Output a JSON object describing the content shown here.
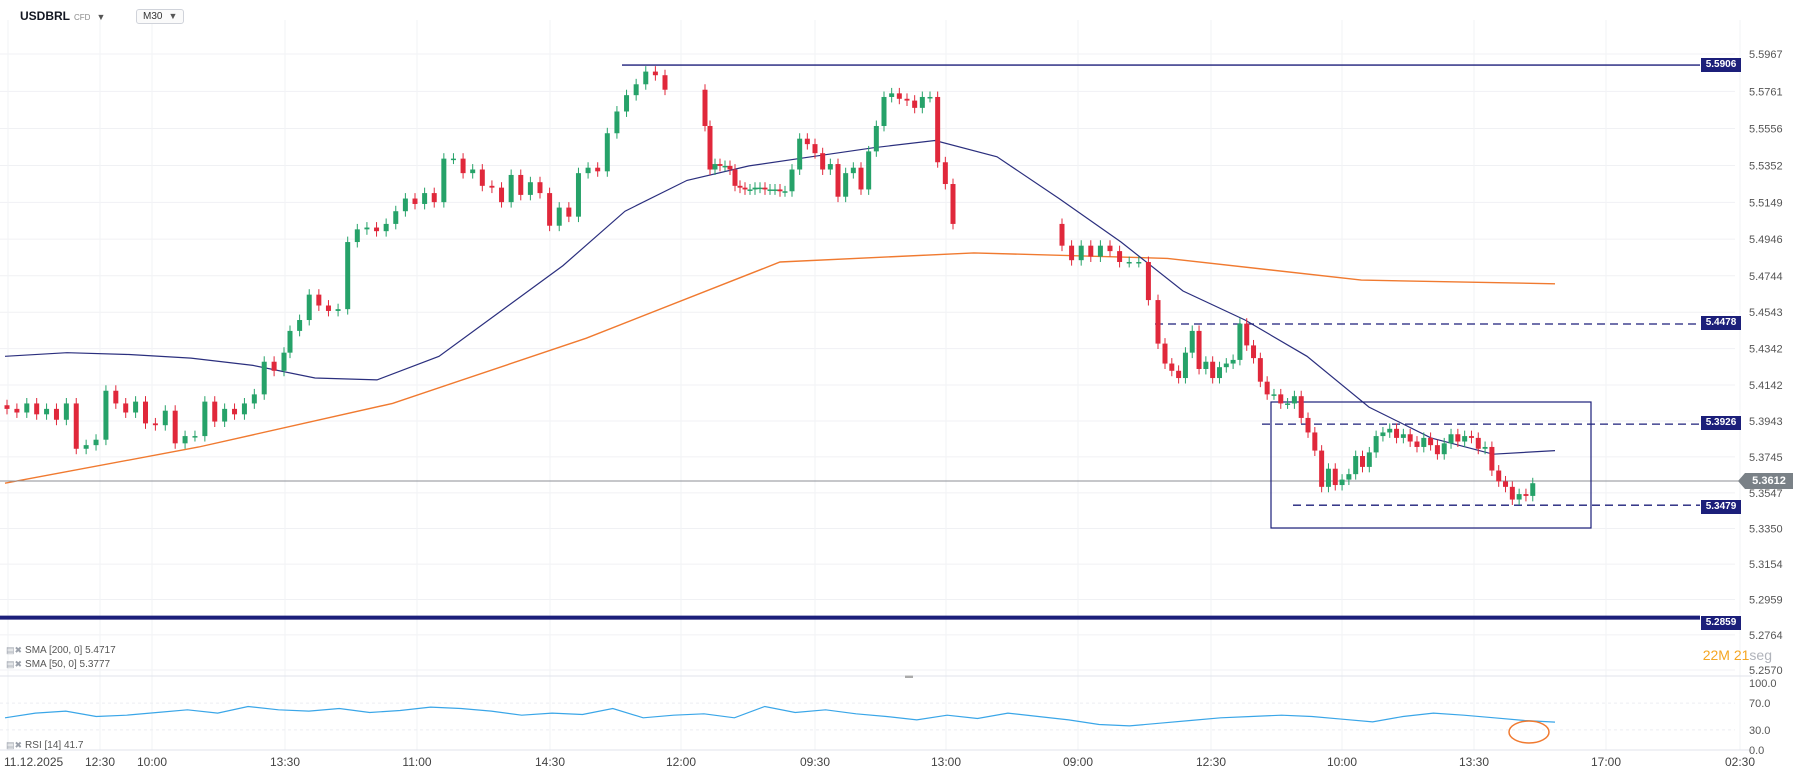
{
  "header": {
    "symbol": "USDBRL",
    "symbol_tag": "CFD",
    "timeframe": "M30"
  },
  "indicators": {
    "sma200_label": "SMA [200, 0] 5.4717",
    "sma50_label": "SMA [50, 0] 5.3777",
    "rsi_label": "RSI [14] 41.7"
  },
  "countdown": {
    "min": "22",
    "min_unit": "M",
    "sec": "21",
    "sec_unit": "seg"
  },
  "colors": {
    "up": "#26a269",
    "down": "#e0283b",
    "sma50": "#2b2f7e",
    "sma200": "#f07a30",
    "rsi": "#3aa6e8",
    "level": "#1c1f7a"
  },
  "chart_data": {
    "type": "candlestick",
    "symbol": "USDBRL",
    "timeframe": "M30",
    "y_ticks": [
      "5.5967",
      "5.5761",
      "5.5556",
      "5.5352",
      "5.5149",
      "5.4946",
      "5.4744",
      "5.4543",
      "5.4342",
      "5.4142",
      "5.3943",
      "5.3745",
      "5.3547",
      "5.3350",
      "5.3154",
      "5.2959",
      "5.2764",
      "5.2570"
    ],
    "ylim": [
      5.257,
      5.5967
    ],
    "x_ticks": [
      "11.12.2025",
      "12:30",
      "10:00",
      "13:30",
      "11:00",
      "14:30",
      "12:00",
      "09:30",
      "13:00",
      "09:00",
      "12:30",
      "10:00",
      "13:30",
      "17:00",
      "02:30"
    ],
    "current_price": "5.3612",
    "levels": [
      {
        "price": "5.5906",
        "style": "solid"
      },
      {
        "price": "5.4478",
        "style": "dashed"
      },
      {
        "price": "5.3926",
        "style": "dashed"
      },
      {
        "price": "5.3479",
        "style": "dashed"
      },
      {
        "price": "5.2859",
        "style": "solid-thick"
      }
    ],
    "closes": [
      5.401,
      5.399,
      5.404,
      5.398,
      5.401,
      5.395,
      5.404,
      5.379,
      5.381,
      5.384,
      5.411,
      5.404,
      5.399,
      5.405,
      5.393,
      5.392,
      5.4,
      5.382,
      5.386,
      5.386,
      5.405,
      5.394,
      5.401,
      5.398,
      5.404,
      5.409,
      5.427,
      5.422,
      5.432,
      5.444,
      5.45,
      5.464,
      5.458,
      5.455,
      5.456,
      5.493,
      5.5,
      5.501,
      5.499,
      5.503,
      5.51,
      5.517,
      5.514,
      5.52,
      5.515,
      5.539,
      5.539,
      5.531,
      5.533,
      5.524,
      5.523,
      5.515,
      5.53,
      5.519,
      5.526,
      5.52,
      5.502,
      5.512,
      5.507,
      5.531,
      5.534,
      5.532,
      5.553,
      5.565,
      5.574,
      5.58,
      5.587,
      5.585,
      5.577,
      5.557,
      5.533,
      5.536,
      5.535,
      5.535,
      5.533,
      5.524,
      5.523,
      5.522,
      5.522,
      5.523,
      5.523,
      5.522,
      5.522,
      5.522,
      5.521,
      5.521,
      5.533,
      5.55,
      5.547,
      5.542,
      5.533,
      5.536,
      5.518,
      5.531,
      5.534,
      5.522,
      5.543,
      5.557,
      5.573,
      5.575,
      5.572,
      5.571,
      5.567,
      5.573,
      5.573,
      5.537,
      5.525,
      5.503,
      5.491,
      5.483,
      5.491,
      5.485,
      5.491,
      5.488,
      5.482,
      5.482,
      5.482,
      5.461,
      5.437,
      5.426,
      5.422,
      5.418,
      5.432,
      5.444,
      5.423,
      5.427,
      5.418,
      5.424,
      5.426,
      5.428,
      5.448,
      5.436,
      5.429,
      5.416,
      5.409,
      5.409,
      5.404,
      5.404,
      5.408,
      5.396,
      5.388,
      5.378,
      5.358,
      5.368,
      5.359,
      5.362,
      5.365,
      5.375,
      5.369,
      5.377,
      5.386,
      5.388,
      5.39,
      5.385,
      5.387,
      5.383,
      5.38,
      5.385,
      5.381,
      5.376,
      5.382,
      5.387,
      5.383,
      5.386,
      5.385,
      5.379,
      5.38,
      5.367,
      5.361,
      5.358,
      5.351,
      5.354,
      5.353,
      5.36
    ],
    "sma50": [
      5.43,
      5.432,
      5.431,
      5.429,
      5.425,
      5.418,
      5.417,
      5.43,
      5.455,
      5.48,
      5.51,
      5.527,
      5.535,
      5.54,
      5.545,
      5.549,
      5.54,
      5.517,
      5.493,
      5.466,
      5.45,
      5.43,
      5.402,
      5.385,
      5.376,
      5.378
    ],
    "sma200": [
      5.36,
      5.38,
      5.404,
      5.44,
      5.482,
      5.487,
      5.484,
      5.472,
      5.47
    ],
    "rsi": [
      48,
      55,
      58,
      50,
      52,
      56,
      60,
      55,
      65,
      60,
      58,
      62,
      56,
      59,
      64,
      62,
      58,
      52,
      55,
      53,
      62,
      48,
      52,
      54,
      48,
      65,
      56,
      60,
      54,
      50,
      45,
      52,
      47,
      55,
      50,
      45,
      38,
      36,
      40,
      44,
      48,
      50,
      52,
      50,
      46,
      42,
      50,
      55,
      52,
      48,
      44,
      41.7
    ]
  }
}
